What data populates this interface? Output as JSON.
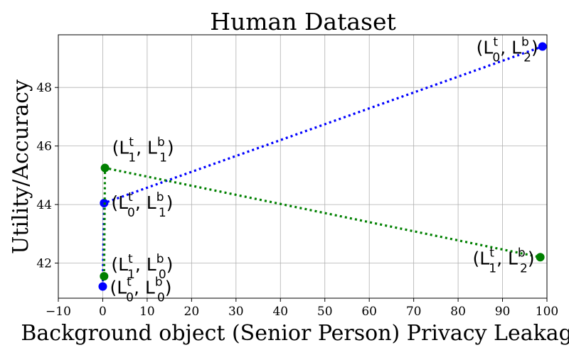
{
  "chart_data": {
    "type": "scatter",
    "title": "Human Dataset",
    "xlabel": "Background object (Senior Person) Privacy Leakage",
    "ylabel": "Utility/Accuracy",
    "xlim": [
      -10,
      100
    ],
    "ylim": [
      40.8,
      49.8
    ],
    "xticks": [
      -10,
      0,
      10,
      20,
      30,
      40,
      50,
      60,
      70,
      80,
      90,
      100
    ],
    "yticks": [
      42,
      44,
      46,
      48
    ],
    "xtick_labels": [
      "−10",
      "0",
      "10",
      "20",
      "30",
      "40",
      "50",
      "60",
      "70",
      "80",
      "90",
      "100"
    ],
    "ytick_labels": [
      "42",
      "44",
      "46",
      "48"
    ],
    "grid": true,
    "series": [
      {
        "color": "#0000ff",
        "linestyle": "dotted",
        "points": [
          {
            "x": 0.0,
            "y": 41.2,
            "label": {
              "sup": "t",
              "sub": "0",
              "sup2": "b",
              "sub2": "0"
            }
          },
          {
            "x": 0.3,
            "y": 44.05,
            "label": {
              "sup": "t",
              "sub": "0",
              "sup2": "b",
              "sub2": "1"
            }
          },
          {
            "x": 99.0,
            "y": 49.4,
            "label": {
              "sup": "t",
              "sub": "0",
              "sup2": "b",
              "sub2": "2"
            }
          }
        ]
      },
      {
        "color": "#008000",
        "linestyle": "dotted",
        "points": [
          {
            "x": 0.3,
            "y": 41.55,
            "label": {
              "sup": "t",
              "sub": "1",
              "sup2": "b",
              "sub2": "0"
            }
          },
          {
            "x": 0.5,
            "y": 45.25,
            "label": {
              "sup": "t",
              "sub": "1",
              "sup2": "b",
              "sub2": "1"
            }
          },
          {
            "x": 98.5,
            "y": 42.2,
            "label": {
              "sup": "t",
              "sub": "1",
              "sup2": "b",
              "sub2": "2"
            }
          }
        ]
      }
    ]
  }
}
